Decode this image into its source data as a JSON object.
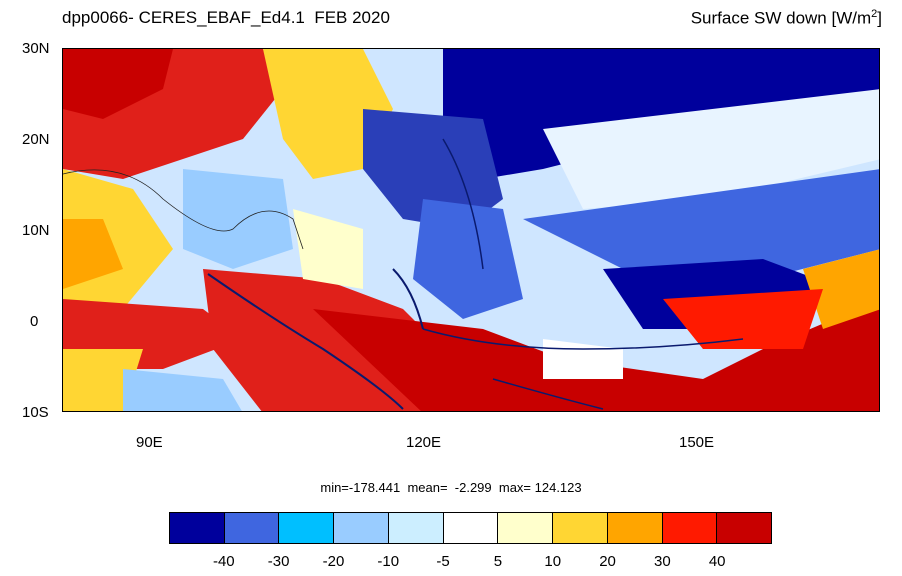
{
  "title_left": "dpp0066- CERES_EBAF_Ed4.1  FEB 2020",
  "title_right": "Surface SW down [W/m",
  "title_right_sup": "2",
  "title_right_close": "]",
  "y_axis_labels": [
    "30N",
    "20N",
    "10N",
    "0",
    "10S"
  ],
  "x_axis_labels": [
    "90E",
    "120E",
    "150E"
  ],
  "stats_text": "min=-178.441  mean=  -2.299  max= 124.123",
  "colorbar": {
    "colors": [
      "#00009c",
      "#3f66e0",
      "#00bfff",
      "#99ccff",
      "#cceeff",
      "#ffffff",
      "#ffffcc",
      "#ffd633",
      "#ffa500",
      "#ff1a00",
      "#c80000"
    ],
    "labels": [
      "-40",
      "-30",
      "-20",
      "-10",
      "-5",
      "5",
      "10",
      "20",
      "30",
      "40"
    ]
  }
}
